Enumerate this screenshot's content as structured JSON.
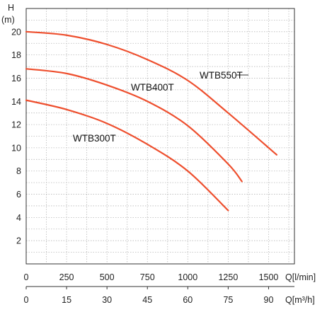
{
  "chart_data": {
    "type": "line",
    "y_axis": {
      "label_top": "H",
      "label_unit": "(m)",
      "ticks": [
        2,
        4,
        6,
        8,
        10,
        12,
        14,
        16,
        18,
        20
      ],
      "range": [
        0,
        22
      ]
    },
    "x_axis_primary": {
      "label": "Q[l/min]",
      "ticks": [
        0,
        250,
        500,
        750,
        1000,
        1250,
        1500
      ],
      "range": [
        0,
        1660
      ]
    },
    "x_axis_secondary": {
      "label": "Q[m³/h]",
      "ticks": [
        0,
        15,
        30,
        45,
        60,
        75,
        90
      ],
      "range": [
        0,
        99.6
      ]
    },
    "grid": true,
    "series": [
      {
        "name": "WTB550T",
        "color": "#ee4f2e",
        "x": [
          0,
          250,
          500,
          750,
          1000,
          1250,
          1550
        ],
        "y": [
          20,
          19.7,
          18.9,
          17.6,
          15.8,
          13.0,
          9.4
        ]
      },
      {
        "name": "WTB400T",
        "color": "#ee4f2e",
        "x": [
          0,
          250,
          500,
          750,
          1000,
          1250,
          1335
        ],
        "y": [
          16.8,
          16.4,
          15.4,
          14.0,
          11.9,
          8.6,
          7.1
        ]
      },
      {
        "name": "WTB300T",
        "color": "#ee4f2e",
        "x": [
          0,
          250,
          500,
          750,
          1000,
          1250
        ],
        "y": [
          14.1,
          13.3,
          12.1,
          10.3,
          8.0,
          4.6
        ]
      }
    ]
  }
}
